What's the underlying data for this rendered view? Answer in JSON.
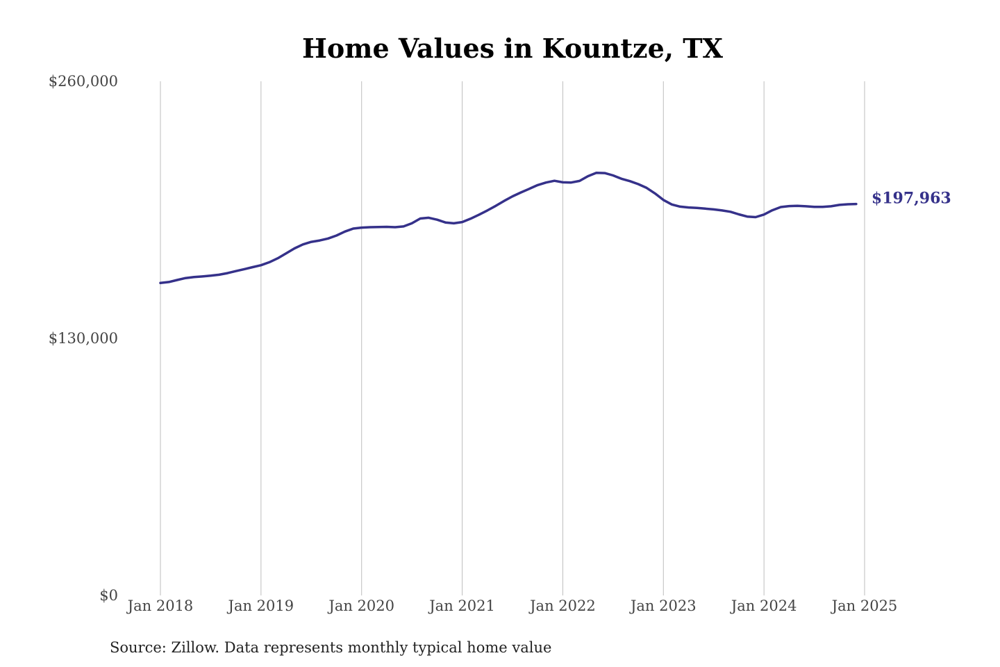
{
  "chart_data": {
    "type": "line",
    "title": "Home Values in Kountze, TX",
    "source": "Source: Zillow. Data represents monthly typical home value",
    "ylim": [
      0,
      260000
    ],
    "y_ticks": [
      {
        "value": 0,
        "label": "$0"
      },
      {
        "value": 130000,
        "label": "$130,000"
      },
      {
        "value": 260000,
        "label": "$260,000"
      }
    ],
    "x_range": [
      2018.0,
      2025.0
    ],
    "x_ticks": [
      {
        "value": 2018,
        "label": "Jan 2018"
      },
      {
        "value": 2019,
        "label": "Jan 2019"
      },
      {
        "value": 2020,
        "label": "Jan 2020"
      },
      {
        "value": 2021,
        "label": "Jan 2021"
      },
      {
        "value": 2022,
        "label": "Jan 2022"
      },
      {
        "value": 2023,
        "label": "Jan 2023"
      },
      {
        "value": 2024,
        "label": "Jan 2024"
      },
      {
        "value": 2025,
        "label": "Jan 2025"
      }
    ],
    "grid": "vertical",
    "line_color": "#35318a",
    "end_label": "$197,963",
    "series": [
      {
        "points": [
          [
            "2018-01",
            158000
          ],
          [
            "2018-02",
            158500
          ],
          [
            "2018-03",
            159500
          ],
          [
            "2018-04",
            160500
          ],
          [
            "2018-05",
            161000
          ],
          [
            "2018-06",
            161300
          ],
          [
            "2018-07",
            161700
          ],
          [
            "2018-08",
            162200
          ],
          [
            "2018-09",
            163000
          ],
          [
            "2018-10",
            164000
          ],
          [
            "2018-11",
            165000
          ],
          [
            "2018-12",
            166000
          ],
          [
            "2019-01",
            167000
          ],
          [
            "2019-02",
            168500
          ],
          [
            "2019-03",
            170500
          ],
          [
            "2019-04",
            173000
          ],
          [
            "2019-05",
            175500
          ],
          [
            "2019-06",
            177500
          ],
          [
            "2019-07",
            178800
          ],
          [
            "2019-08",
            179500
          ],
          [
            "2019-09",
            180500
          ],
          [
            "2019-10",
            182000
          ],
          [
            "2019-11",
            184000
          ],
          [
            "2019-12",
            185500
          ],
          [
            "2020-01",
            186000
          ],
          [
            "2020-02",
            186200
          ],
          [
            "2020-03",
            186300
          ],
          [
            "2020-04",
            186400
          ],
          [
            "2020-05",
            186200
          ],
          [
            "2020-06",
            186600
          ],
          [
            "2020-07",
            188200
          ],
          [
            "2020-08",
            190600
          ],
          [
            "2020-09",
            191000
          ],
          [
            "2020-10",
            190000
          ],
          [
            "2020-11",
            188600
          ],
          [
            "2020-12",
            188200
          ],
          [
            "2021-01",
            188800
          ],
          [
            "2021-02",
            190500
          ],
          [
            "2021-03",
            192500
          ],
          [
            "2021-04",
            194700
          ],
          [
            "2021-05",
            197000
          ],
          [
            "2021-06",
            199500
          ],
          [
            "2021-07",
            201800
          ],
          [
            "2021-08",
            203800
          ],
          [
            "2021-09",
            205600
          ],
          [
            "2021-10",
            207500
          ],
          [
            "2021-11",
            208800
          ],
          [
            "2021-12",
            209700
          ],
          [
            "2022-01",
            208900
          ],
          [
            "2022-02",
            208800
          ],
          [
            "2022-03",
            209600
          ],
          [
            "2022-04",
            212000
          ],
          [
            "2022-05",
            213700
          ],
          [
            "2022-06",
            213600
          ],
          [
            "2022-07",
            212400
          ],
          [
            "2022-08",
            210700
          ],
          [
            "2022-09",
            209500
          ],
          [
            "2022-10",
            208000
          ],
          [
            "2022-11",
            206100
          ],
          [
            "2022-12",
            203300
          ],
          [
            "2023-01",
            200000
          ],
          [
            "2023-02",
            197700
          ],
          [
            "2023-03",
            196600
          ],
          [
            "2023-04",
            196200
          ],
          [
            "2023-05",
            196000
          ],
          [
            "2023-06",
            195600
          ],
          [
            "2023-07",
            195200
          ],
          [
            "2023-08",
            194700
          ],
          [
            "2023-09",
            194000
          ],
          [
            "2023-10",
            192700
          ],
          [
            "2023-11",
            191600
          ],
          [
            "2023-12",
            191300
          ],
          [
            "2024-01",
            192600
          ],
          [
            "2024-02",
            194800
          ],
          [
            "2024-03",
            196400
          ],
          [
            "2024-04",
            196900
          ],
          [
            "2024-05",
            197000
          ],
          [
            "2024-06",
            196800
          ],
          [
            "2024-07",
            196500
          ],
          [
            "2024-08",
            196500
          ],
          [
            "2024-09",
            196800
          ],
          [
            "2024-10",
            197500
          ],
          [
            "2024-11",
            197800
          ],
          [
            "2024-12",
            197963
          ]
        ]
      }
    ]
  }
}
